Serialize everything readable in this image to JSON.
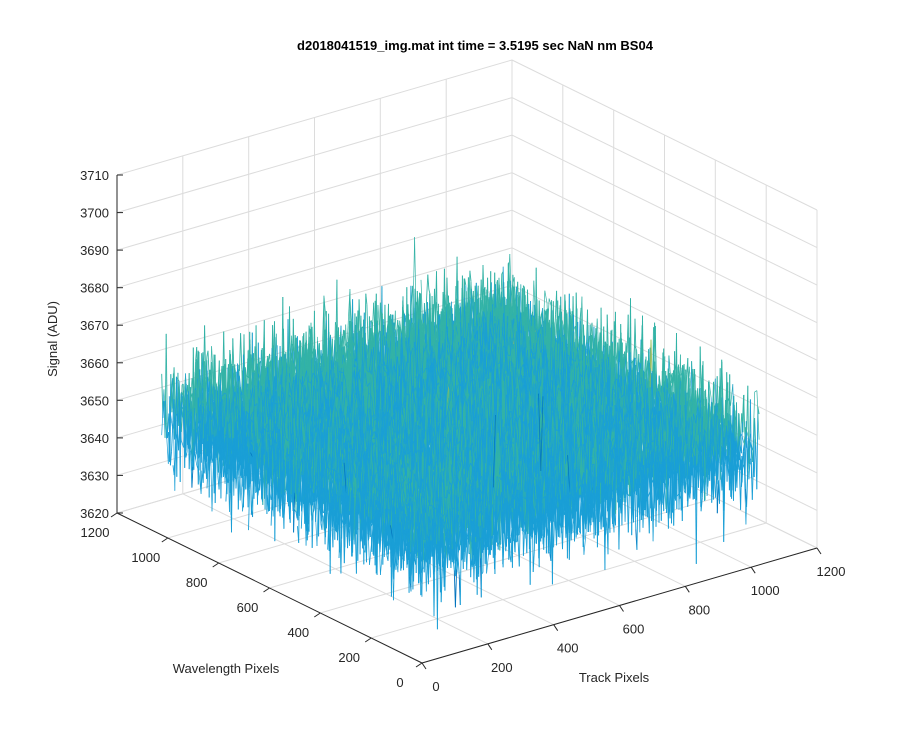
{
  "chart_data": {
    "type": "surface",
    "title": "d2018041519_img.mat int time = 3.5195 sec  NaN nm BS04",
    "xlabel": "Track Pixels",
    "ylabel": "Wavelength Pixels",
    "zlabel": "Signal (ADU)",
    "xlim": [
      0,
      1200
    ],
    "ylim": [
      0,
      1200
    ],
    "zlim": [
      3620,
      3710
    ],
    "xticks": [
      "0",
      "200",
      "400",
      "600",
      "800",
      "1000",
      "1200"
    ],
    "yticks": [
      "0",
      "200",
      "400",
      "600",
      "800",
      "1000",
      "1200"
    ],
    "zticks": [
      "3620",
      "3630",
      "3640",
      "3650",
      "3660",
      "3670",
      "3680",
      "3690",
      "3700",
      "3710"
    ],
    "x_extent": [
      0,
      1024
    ],
    "y_extent": [
      0,
      1024
    ],
    "signal_mean": 3652,
    "signal_range": [
      3620,
      3705
    ],
    "grid": true,
    "colormap": "parula",
    "colors": {
      "low": "#0072bd",
      "mid_low": "#1a9fd6",
      "mid": "#33b3a6",
      "mid_high": "#9bbf5a",
      "high": "#d9c24a"
    }
  }
}
